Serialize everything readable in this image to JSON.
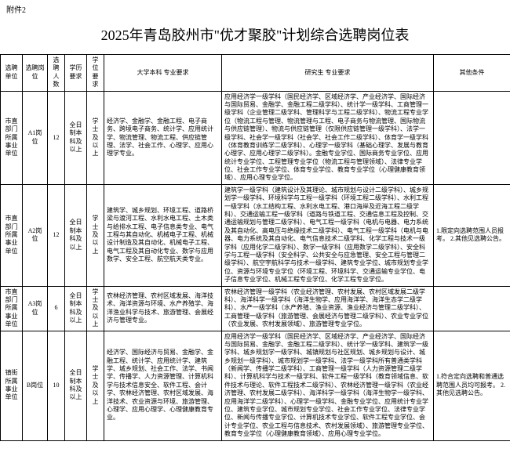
{
  "attachment_label": "附件2",
  "title": "2025年青岛胶州市\"优才聚胶\"计划综合选聘岗位表",
  "headers": {
    "unit": "选聘单位",
    "position": "选聘岗位",
    "count": "选聘人数",
    "education": "学历要求",
    "degree": "学位要求",
    "undergrad_req": "大学本科\n专业要求",
    "grad_req": "研究生\n专业要求",
    "other": "其他条件"
  },
  "rows": [
    {
      "unit": "市直部门所属事业单位",
      "position": "A1岗位",
      "count": "12",
      "education": "全日制本科及以上",
      "degree": "学士及以上",
      "undergrad_req": "经济学、金融学、金融工程、电子商务、跨境电子商务、统计学、应用统计学、物流管理、物流工程、供应链管理、法学、社会工作、心理学、应用心理学专业。",
      "grad_req": "应用经济学一级学科（国民经济学、区域经济学、产业经济学、国际经济与国际贸易、金融学、金融工程二级学科）、统计学一级学科、工商管理一级学科（企业管理二级学科、管理科学与工程二级学科）、物流工程专业学位（物流工程与管理、物流管理与工程、电子商务与物流管理、国际物流与供应链管理）、物流与供应链管理（仅限供应链管理一级学科）、法学一级学科、社会学一级学科（社会学、社会工作二级学科）、体育学一级学科（体育教育训练学二级学科）、心理学一级学科（基础心理学、发展与教育心理学、应用心理学二级学科）。金融专业学位、国际商务专业学位、应用统计专业学位、工程管理专业学位（物流工程与管理领域）、法律专业学位、社会工作专业学位、体育专业学位、教育专业学位（心理健康教育领域）、应用心理专业学位。",
      "other": ""
    },
    {
      "unit": "市直部门所属事业单位",
      "position": "A2岗位",
      "count": "12",
      "education": "全日制本科及以上",
      "degree": "学士及以上",
      "undergrad_req": "建筑学、城乡规划、环境工程、道路桥梁与渡河工程、水利水电工程、土木类与给排水工程、电子信息类专业、电气工程与其自动化、机械电子工程、机械设计制造及其自动化、机械电子工程、电气工程及其自动化专业、数学与应用数学、安全工程、航空航天类专业。",
      "grad_req": "建筑学一级学科（建筑设计及其理论、城市规划与设计二级学科）、城乡规划学一级学科、环境科学与工程一级学科（环境工程二级学科）、水利工程一级学科（水工结构工程、水利水电工程、港口海岸及近海工程二级学科）、交通运输工程一级学科（道路与铁道工程、交通信息工程及控制、交通运输规划与管理二级学科）、电气工程一级学科（电机与电器、电力系统及其自动化、高电压与绝缘技术二级学科）、电气工程一级学科（电机与电器、电力系统及其自动化、电气信息技术二级学科、化学工程与技术一级学科（应用化学二级学科）、数学一级学科（应用数学二级学科）、安全科学与工程一级学科（安全科学、公共安全与应急管理、安全工程与管理二级学科）、航空宇航科学与技术一级学科、建筑专业学位、城市规划专业学位、资源与环境专业学位（环境工程、环境科学、交通运输专业学位、电子信息专业学位、机械工程专业学位、化学工程专业学位。",
      "other": "1.限定向选聘范围人员报考。\n2.其他见选聘公告。"
    },
    {
      "unit": "市直部门所属事业单位",
      "position": "A3岗位",
      "count": "6",
      "education": "全日制本科及以上",
      "degree": "学士及以上",
      "undergrad_req": "农林经济管理、农村区域发展、海洋技术、海洋资源与环境、水产养殖学、海洋渔业科学与技术、旅游管理、会展经济与管理专业。",
      "grad_req": "农林经济管理一级学科（农业经济管理、农村发展、农村区域发展二级学科）、海洋科学一级学科（海洋生物学、应用海洋学、海洋生态学二级学科）、水产一级学科（水产养殖、渔业资源、渔业经济与管理二级学科）、工商管理一级学科（旅游管理、会展经济与管理二级学科）、农业专业学位（农业发展、农村发展领域）、旅游管理专业学位。",
      "other": ""
    },
    {
      "unit": "镇街所属事业单位",
      "position": "B岗位",
      "count": "10",
      "education": "全日制本科及以上",
      "degree": "学士及以上",
      "undergrad_req": "经济学、国际经济与贸易、金融学、金融工程、统计学、应用统计学、建筑学、城乡规划、社会工作、法学、书闻学、传播学、人力资源管理、计算机科学与技术信息安全、软件工程、会计学、农林经济管理、农村区域发展、海洋技术、农业资源与环境、旅游管理、心理学、应用心理学、心理健康教育专业。",
      "grad_req": "应用经济学一级学科（国民经济学、区域经济学、产业经济学、国际经济与国际贸易、金融学、金融工程二级学科）、统计学一级学科、建筑学一级学科、城乡规划学一级学科、城镇规划与社区规划、城乡规划与设计、城乡规划一级学科）、城市规划学一级学科、法学一级学科所有普通类学科（新闻学、传播学二级学科）、工商管理一级学科（人力资源管理二级学科）、计算机科学与技术一级学科、软件工程一级学科（教育领域信息、软件技术与理论、软件工程技术二级学科）、农林经济管理一级学科（农业经济管理、农村发展二级学科）、海洋科学一级学科（海洋生物学一级学科、应用海洋学二级学科）、心理学一级学科、金融专业学位、应用统计专业学位、建筑专业学位、城市规划专业学位、社会工作专业学位、法律专业学位、新闻与传播专业学位、计算机技术专业学位、软件工程专业学位、会计专业学位、农业工程与信息技术、农村发展领域）、旅游管理专业学位、教育专业学位（心理健康教育领域）、应用心理专业学位。",
      "other": "1.符合定向选聘和普通选聘范围人员均可报考。\n2.其他见选聘公告。"
    }
  ]
}
